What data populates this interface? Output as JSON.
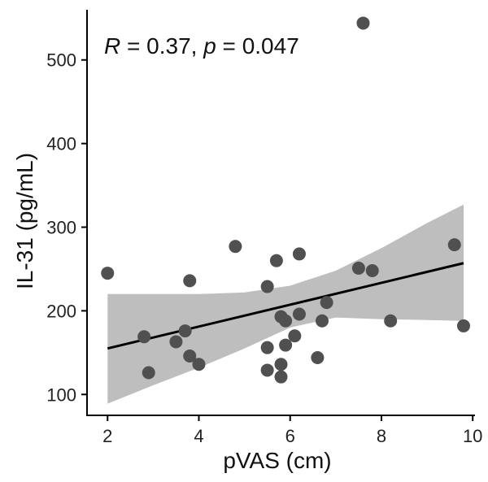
{
  "chart_data": {
    "type": "scatter",
    "xlabel": "pVAS (cm)",
    "ylabel": "IL-31 (pg/mL)",
    "xlim": [
      1.55,
      10.05
    ],
    "ylim": [
      75,
      560
    ],
    "x_ticks": [
      2,
      4,
      6,
      8,
      10
    ],
    "y_ticks": [
      100,
      200,
      300,
      400,
      500
    ],
    "grid": false,
    "annotation": {
      "r_symbol": "R",
      "r_text": " = 0.37, ",
      "p_symbol": "p",
      "p_text": " = 0.047"
    },
    "points": [
      {
        "x": 2.0,
        "y": 245
      },
      {
        "x": 2.8,
        "y": 169
      },
      {
        "x": 2.9,
        "y": 126
      },
      {
        "x": 3.5,
        "y": 163
      },
      {
        "x": 3.7,
        "y": 176
      },
      {
        "x": 3.8,
        "y": 236
      },
      {
        "x": 3.8,
        "y": 146
      },
      {
        "x": 4.0,
        "y": 136
      },
      {
        "x": 4.8,
        "y": 277
      },
      {
        "x": 5.5,
        "y": 229
      },
      {
        "x": 5.5,
        "y": 156
      },
      {
        "x": 5.5,
        "y": 129
      },
      {
        "x": 5.7,
        "y": 260
      },
      {
        "x": 5.8,
        "y": 193
      },
      {
        "x": 5.8,
        "y": 136
      },
      {
        "x": 5.8,
        "y": 121
      },
      {
        "x": 5.9,
        "y": 188
      },
      {
        "x": 5.9,
        "y": 159
      },
      {
        "x": 6.1,
        "y": 170
      },
      {
        "x": 6.2,
        "y": 268
      },
      {
        "x": 6.2,
        "y": 196
      },
      {
        "x": 6.6,
        "y": 144
      },
      {
        "x": 6.7,
        "y": 188
      },
      {
        "x": 6.8,
        "y": 210
      },
      {
        "x": 7.5,
        "y": 251
      },
      {
        "x": 7.6,
        "y": 544
      },
      {
        "x": 7.8,
        "y": 248
      },
      {
        "x": 8.2,
        "y": 188
      },
      {
        "x": 9.6,
        "y": 279
      },
      {
        "x": 9.8,
        "y": 182
      }
    ],
    "regression": {
      "x": [
        2.0,
        9.8
      ],
      "y": [
        155,
        257
      ]
    },
    "confidence_band": {
      "x": [
        2.0,
        3.0,
        4.0,
        5.0,
        6.0,
        7.0,
        8.0,
        9.0,
        9.8
      ],
      "upper": [
        220,
        220,
        220,
        222,
        230,
        248,
        275,
        305,
        327
      ],
      "lower": [
        89,
        111,
        132,
        155,
        180,
        192,
        190,
        189,
        188
      ]
    },
    "colors": {
      "points": "#505050",
      "line": "#000000",
      "band": "#bebebe",
      "axis": "#000000"
    }
  }
}
